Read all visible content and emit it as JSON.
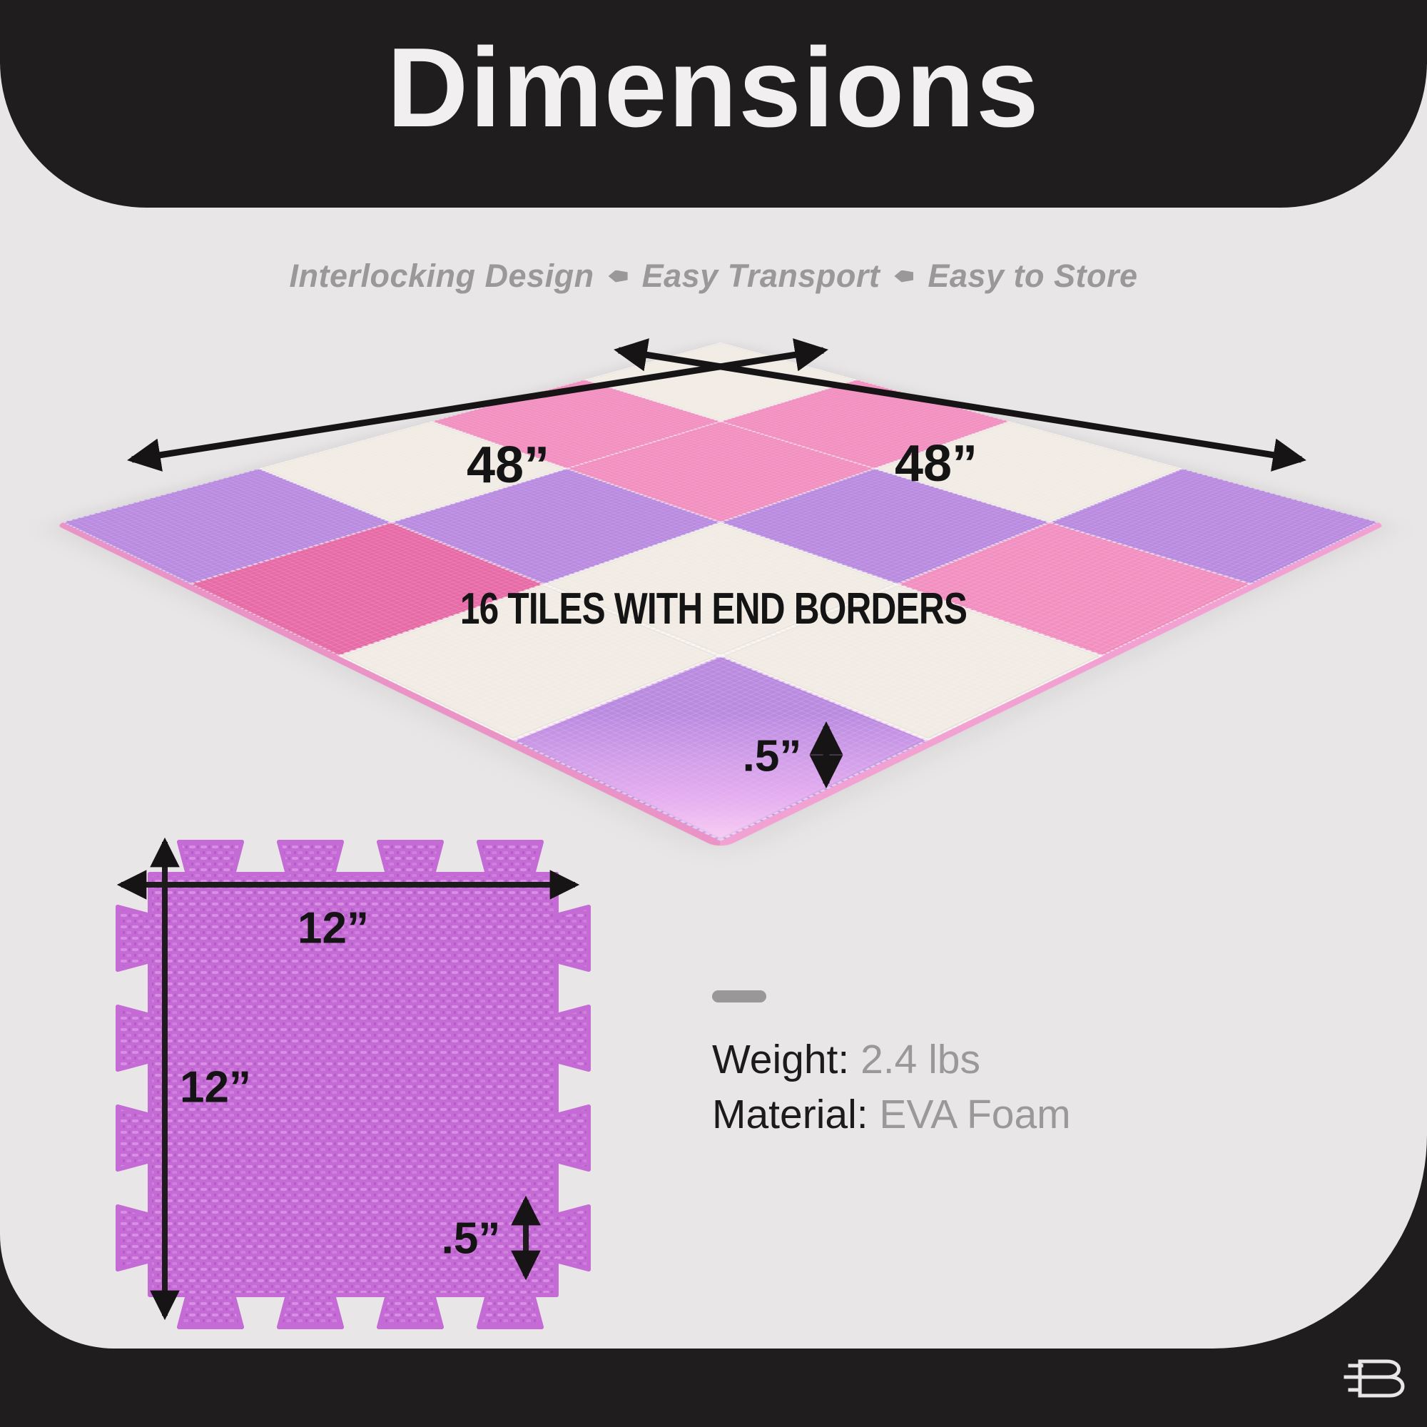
{
  "page": {
    "bg": "#1f1d1e",
    "panel_bg": "#e9e6e7",
    "accent_text": "#9b9899",
    "ink": "#141414"
  },
  "header": {
    "title": "Dimensions"
  },
  "subtitle": {
    "features": [
      "Interlocking Design",
      "Easy Transport",
      "Easy to Store"
    ],
    "separator_icon": "arrow-bullet"
  },
  "mat": {
    "caption": "16 TILES WITH END BORDERS",
    "side_a_label": "48”",
    "side_b_label": "48”",
    "thickness_label": ".5”",
    "palette": {
      "white": "#f1ebe4",
      "pink": "#f28fc0",
      "hotpink": "#e76aa6",
      "purple": "#b98ae0",
      "purple_light": "#dca4ef",
      "edge_pink": "#f2a2d2"
    },
    "tiles": [
      [
        "white",
        "pink",
        "white",
        "purple"
      ],
      [
        "pink",
        "pink",
        "purple",
        "pink"
      ],
      [
        "white",
        "purple",
        "white",
        "white"
      ],
      [
        "purple",
        "hotpink",
        "white",
        "purple"
      ]
    ]
  },
  "tile": {
    "width_label": "12”",
    "height_label": "12”",
    "thickness_label": ".5”",
    "color": "#c56bd5",
    "texture_light": "#d98de3"
  },
  "specs": [
    {
      "label": "Weight:",
      "value": "2.4 lbs"
    },
    {
      "label": "Material:",
      "value": "EVA Foam"
    }
  ],
  "footer": {
    "brand_mark": "B"
  }
}
